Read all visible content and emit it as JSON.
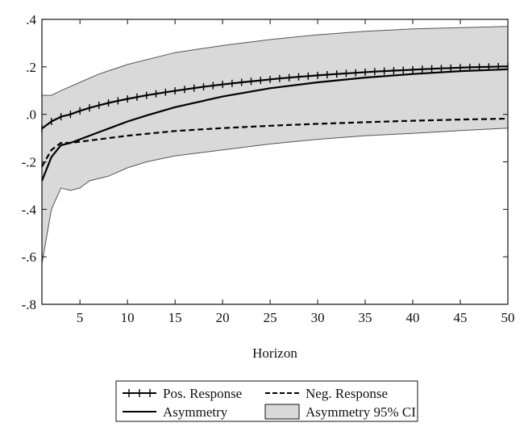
{
  "chart_data": {
    "type": "line",
    "xlabel": "Horizon",
    "ylabel": "",
    "xlim": [
      1,
      50
    ],
    "ylim": [
      -0.8,
      0.4
    ],
    "x_ticks": [
      5,
      10,
      15,
      20,
      25,
      30,
      35,
      40,
      45,
      50
    ],
    "x_tick_labels": [
      "5",
      "10",
      "15",
      "20",
      "25",
      "30",
      "35",
      "40",
      "45",
      "50"
    ],
    "y_ticks": [
      0.4,
      0.2,
      0.0,
      -0.2,
      -0.4,
      -0.6,
      -0.8
    ],
    "y_tick_labels": [
      ".4",
      ".2",
      ".0",
      "-.2",
      "-.4",
      "-.6",
      "-.8"
    ],
    "grid": false,
    "legend_position": "bottom",
    "series": [
      {
        "name": "Pos. Response",
        "style": "solid-plus",
        "color": "#000000",
        "points": [
          [
            1,
            -0.06
          ],
          [
            2,
            -0.03
          ],
          [
            3,
            -0.01
          ],
          [
            4,
            0.0
          ],
          [
            5,
            0.015
          ],
          [
            6,
            0.027
          ],
          [
            7,
            0.038
          ],
          [
            8,
            0.048
          ],
          [
            9,
            0.057
          ],
          [
            10,
            0.065
          ],
          [
            12,
            0.08
          ],
          [
            14,
            0.093
          ],
          [
            16,
            0.105
          ],
          [
            18,
            0.116
          ],
          [
            20,
            0.126
          ],
          [
            22,
            0.135
          ],
          [
            24,
            0.143
          ],
          [
            26,
            0.151
          ],
          [
            28,
            0.158
          ],
          [
            30,
            0.164
          ],
          [
            32,
            0.17
          ],
          [
            34,
            0.175
          ],
          [
            36,
            0.18
          ],
          [
            38,
            0.184
          ],
          [
            40,
            0.188
          ],
          [
            42,
            0.192
          ],
          [
            44,
            0.195
          ],
          [
            46,
            0.198
          ],
          [
            48,
            0.2
          ],
          [
            50,
            0.202
          ]
        ]
      },
      {
        "name": "Neg. Response",
        "style": "dashed",
        "color": "#000000",
        "points": [
          [
            1,
            -0.22
          ],
          [
            2,
            -0.15
          ],
          [
            3,
            -0.12
          ],
          [
            4,
            -0.12
          ],
          [
            5,
            -0.115
          ],
          [
            7,
            -0.105
          ],
          [
            10,
            -0.09
          ],
          [
            15,
            -0.07
          ],
          [
            20,
            -0.058
          ],
          [
            25,
            -0.048
          ],
          [
            30,
            -0.04
          ],
          [
            35,
            -0.033
          ],
          [
            40,
            -0.027
          ],
          [
            45,
            -0.022
          ],
          [
            50,
            -0.018
          ]
        ]
      },
      {
        "name": "Asymmetry",
        "style": "solid",
        "color": "#000000",
        "points": [
          [
            1,
            -0.28
          ],
          [
            2,
            -0.18
          ],
          [
            3,
            -0.13
          ],
          [
            4,
            -0.12
          ],
          [
            5,
            -0.105
          ],
          [
            6,
            -0.09
          ],
          [
            8,
            -0.06
          ],
          [
            10,
            -0.03
          ],
          [
            12,
            -0.005
          ],
          [
            15,
            0.03
          ],
          [
            20,
            0.075
          ],
          [
            25,
            0.11
          ],
          [
            30,
            0.135
          ],
          [
            35,
            0.155
          ],
          [
            40,
            0.17
          ],
          [
            45,
            0.182
          ],
          [
            50,
            0.19
          ]
        ]
      }
    ],
    "band": {
      "name": "Asymmetry 95% CI",
      "color": "#d9d9d9",
      "upper": [
        [
          1,
          0.08
        ],
        [
          2,
          0.08
        ],
        [
          3,
          0.1
        ],
        [
          5,
          0.135
        ],
        [
          7,
          0.17
        ],
        [
          10,
          0.21
        ],
        [
          15,
          0.26
        ],
        [
          20,
          0.29
        ],
        [
          25,
          0.315
        ],
        [
          30,
          0.335
        ],
        [
          35,
          0.35
        ],
        [
          40,
          0.36
        ],
        [
          45,
          0.365
        ],
        [
          50,
          0.37
        ]
      ],
      "lower": [
        [
          1,
          -0.63
        ],
        [
          2,
          -0.4
        ],
        [
          3,
          -0.31
        ],
        [
          4,
          -0.32
        ],
        [
          5,
          -0.31
        ],
        [
          6,
          -0.28
        ],
        [
          8,
          -0.26
        ],
        [
          10,
          -0.225
        ],
        [
          12,
          -0.2
        ],
        [
          15,
          -0.175
        ],
        [
          20,
          -0.15
        ],
        [
          25,
          -0.125
        ],
        [
          30,
          -0.105
        ],
        [
          35,
          -0.09
        ],
        [
          40,
          -0.08
        ],
        [
          45,
          -0.068
        ],
        [
          50,
          -0.058
        ]
      ]
    }
  }
}
